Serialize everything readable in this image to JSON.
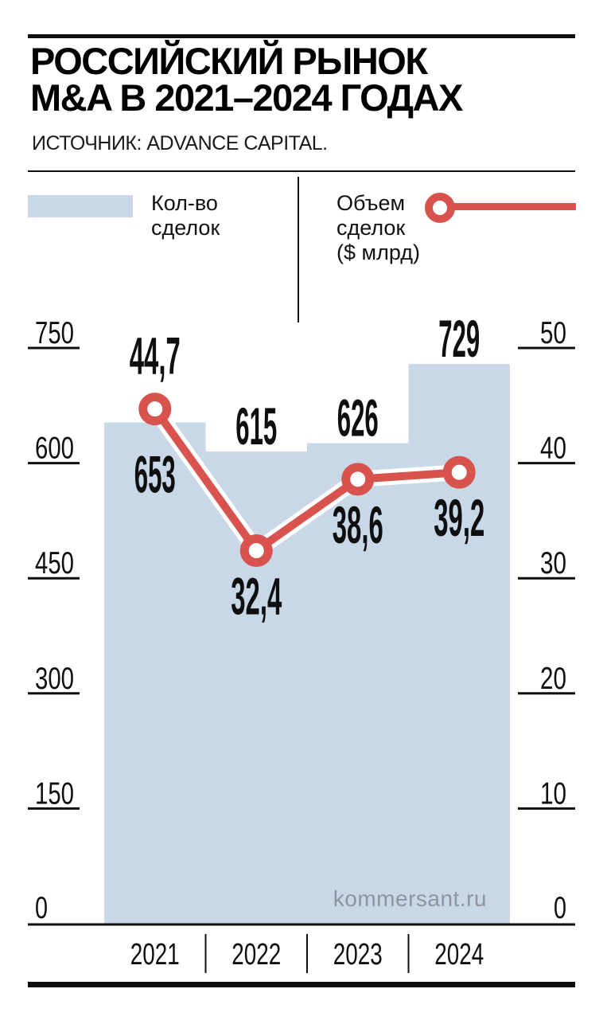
{
  "header": {
    "title_line1": "РОССИЙСКИЙ РЫНОК",
    "title_line2": "M&A В 2021–2024 ГОДАХ",
    "source": "ИСТОЧНИК: ADVANCE CAPITAL."
  },
  "legend": {
    "bars_label": "Кол-во\nсделок",
    "line_label": "Объем\nсделок\n($ млрд)"
  },
  "watermark": "kommersant.ru",
  "colors": {
    "bar_fill": "#c9d8e7",
    "line_red": "#d9534e",
    "ink": "#0f0f0f",
    "watermark_gray": "#8e959c"
  },
  "chart_data": {
    "type": "bar",
    "subtype": "combo-step-bar-with-line",
    "title": "Российский рынок M&A в 2021–2024 годах",
    "source": "Advance Capital",
    "categories": [
      "2021",
      "2022",
      "2023",
      "2024"
    ],
    "series": [
      {
        "name": "Кол-во сделок",
        "type": "bar",
        "axis": "left",
        "values": [
          653,
          615,
          626,
          729
        ],
        "labels": [
          "653",
          "615",
          "626",
          "729"
        ],
        "label_placement": [
          "inside",
          "above",
          "above",
          "above"
        ]
      },
      {
        "name": "Объем сделок ($ млрд)",
        "type": "line",
        "axis": "right",
        "values": [
          44.7,
          32.4,
          38.6,
          39.2
        ],
        "labels": [
          "44,7",
          "32,4",
          "38,6",
          "39,2"
        ],
        "label_placement": [
          "above",
          "below",
          "below",
          "below"
        ]
      }
    ],
    "left_axis": {
      "label": "Кол-во сделок",
      "ticks": [
        0,
        150,
        300,
        450,
        600,
        750
      ],
      "min": 0,
      "max": 750
    },
    "right_axis": {
      "label": "Объем сделок ($ млрд)",
      "ticks": [
        0,
        10,
        20,
        30,
        40,
        50
      ],
      "min": 0,
      "max": 50
    },
    "grid": false,
    "legend_position": "top"
  }
}
